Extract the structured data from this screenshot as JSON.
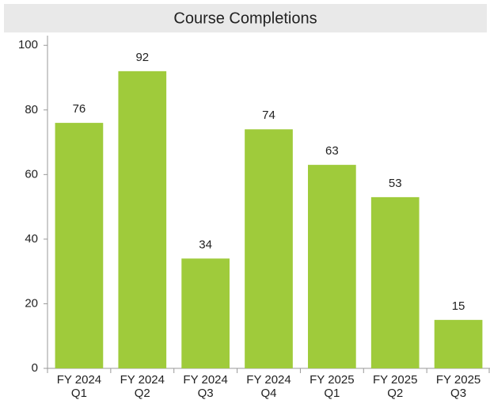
{
  "chart_data": {
    "type": "bar",
    "title": "Course Completions",
    "categories": [
      "FY 2024 Q1",
      "FY 2024 Q2",
      "FY 2024 Q3",
      "FY 2024 Q4",
      "FY 2025 Q1",
      "FY 2025 Q2",
      "FY 2025 Q3"
    ],
    "values": [
      76,
      92,
      34,
      74,
      63,
      53,
      15
    ],
    "color": "#9fcb3b",
    "ylim": [
      0,
      103
    ],
    "yticks": [
      0,
      20,
      40,
      60,
      80,
      100
    ],
    "grid": false
  }
}
